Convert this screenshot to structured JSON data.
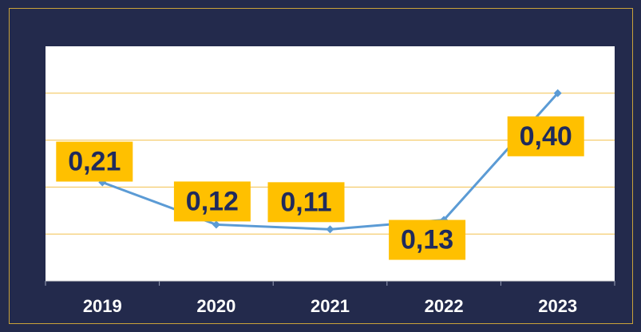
{
  "chart_data": {
    "type": "line",
    "categories": [
      "2019",
      "2020",
      "2021",
      "2022",
      "2023"
    ],
    "series": [
      {
        "color": "#5b9bd5",
        "values": [
          0.21,
          0.12,
          0.11,
          0.13,
          0.4
        ],
        "value_labels": [
          "0,21",
          "0,12",
          "0,11",
          "0,13",
          "0,40"
        ]
      }
    ],
    "ylim": [
      0,
      0.5
    ],
    "yticks": [
      0,
      0.1,
      0.2,
      0.3,
      0.4,
      0.5
    ],
    "grid": true
  }
}
